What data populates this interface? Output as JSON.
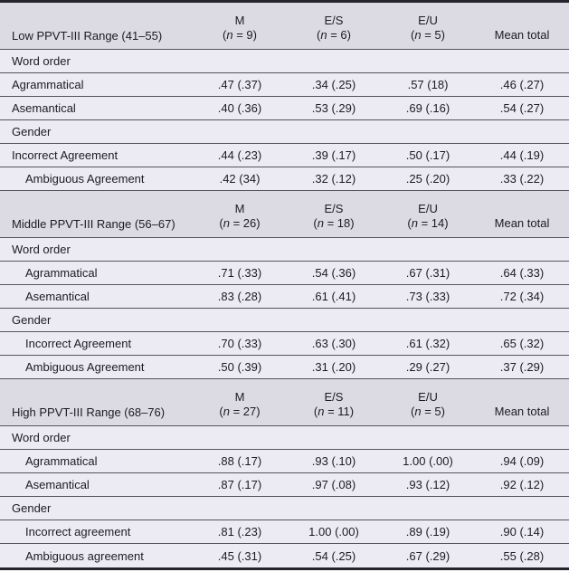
{
  "table": {
    "colors": {
      "header_band_bg": "#dcdbe3",
      "row_bg": "#ecebf3",
      "rule": "#55545d",
      "outer_border": "#24242b",
      "text": "#1b1b21"
    },
    "blocks": [
      {
        "title": "Low PPVT-III Range (41–55)",
        "mean_total_label": "Mean total",
        "col_heads": [
          {
            "label": "M",
            "n_open": "(",
            "n_italic": "n",
            "n_rest": " = 9)"
          },
          {
            "label": "E/S",
            "n_open": "(",
            "n_italic": "n",
            "n_rest": " = 6)"
          },
          {
            "label": "E/U",
            "n_open": "(",
            "n_italic": "n",
            "n_rest": " = 5)"
          }
        ],
        "rows": [
          {
            "type": "section",
            "indent": false,
            "label": "Word order"
          },
          {
            "type": "data",
            "indent": false,
            "label": "Agrammatical",
            "values": [
              ".47 (.37)",
              ".34 (.25)",
              ".57 (18)",
              ".46 (.27)"
            ]
          },
          {
            "type": "data",
            "indent": false,
            "label": "Asemantical",
            "values": [
              ".40 (.36)",
              ".53 (.29)",
              ".69 (.16)",
              ".54 (.27)"
            ]
          },
          {
            "type": "section",
            "indent": false,
            "label": "Gender"
          },
          {
            "type": "data",
            "indent": false,
            "label": "Incorrect Agreement",
            "values": [
              ".44 (.23)",
              ".39 (.17)",
              ".50 (.17)",
              ".44 (.19)"
            ]
          },
          {
            "type": "data",
            "indent": true,
            "label": "Ambiguous Agreement",
            "values": [
              ".42 (34)",
              ".32 (.12)",
              ".25 (.20)",
              ".33 (.22)"
            ]
          }
        ]
      },
      {
        "title": "Middle PPVT-III Range (56–67)",
        "mean_total_label": "Mean total",
        "col_heads": [
          {
            "label": "M",
            "n_open": "(",
            "n_italic": "n",
            "n_rest": " = 26)"
          },
          {
            "label": "E/S",
            "n_open": "(",
            "n_italic": "n",
            "n_rest": " = 18)"
          },
          {
            "label": "E/U",
            "n_open": "(",
            "n_italic": "n",
            "n_rest": " = 14)"
          }
        ],
        "rows": [
          {
            "type": "section",
            "indent": false,
            "label": "Word order"
          },
          {
            "type": "data",
            "indent": true,
            "label": "Agrammatical",
            "values": [
              ".71 (.33)",
              ".54 (.36)",
              ".67 (.31)",
              ".64 (.33)"
            ]
          },
          {
            "type": "data",
            "indent": true,
            "label": "Asemantical",
            "values": [
              ".83 (.28)",
              ".61 (.41)",
              ".73 (.33)",
              ".72 (.34)"
            ]
          },
          {
            "type": "section",
            "indent": false,
            "label": "Gender"
          },
          {
            "type": "data",
            "indent": true,
            "label": "Incorrect Agreement",
            "values": [
              ".70 (.33)",
              ".63 (.30)",
              ".61 (.32)",
              ".65 (.32)"
            ]
          },
          {
            "type": "data",
            "indent": true,
            "label": "Ambiguous Agreement",
            "values": [
              ".50 (.39)",
              ".31 (.20)",
              ".29 (.27)",
              ".37 (.29)"
            ]
          }
        ]
      },
      {
        "title": "High PPVT-III Range (68–76)",
        "mean_total_label": "Mean total",
        "col_heads": [
          {
            "label": "M",
            "n_open": "(",
            "n_italic": "n",
            "n_rest": " = 27)"
          },
          {
            "label": "E/S",
            "n_open": "(",
            "n_italic": "n",
            "n_rest": " = 11)"
          },
          {
            "label": "E/U",
            "n_open": "(",
            "n_italic": "n",
            "n_rest": " = 5)"
          }
        ],
        "rows": [
          {
            "type": "section",
            "indent": false,
            "label": "Word order"
          },
          {
            "type": "data",
            "indent": true,
            "label": "Agrammatical",
            "values": [
              ".88 (.17)",
              ".93 (.10)",
              "1.00 (.00)",
              ".94 (.09)"
            ]
          },
          {
            "type": "data",
            "indent": true,
            "label": "Asemantical",
            "values": [
              ".87 (.17)",
              ".97 (.08)",
              ".93 (.12)",
              ".92 (.12)"
            ]
          },
          {
            "type": "section",
            "indent": false,
            "label": "Gender"
          },
          {
            "type": "data",
            "indent": true,
            "label": "Incorrect agreement",
            "values": [
              ".81 (.23)",
              "1.00 (.00)",
              ".89 (.19)",
              ".90 (.14)"
            ]
          },
          {
            "type": "data",
            "indent": true,
            "label": "Ambiguous agreement",
            "values": [
              ".45 (.31)",
              ".54 (.25)",
              ".67 (.29)",
              ".55 (.28)"
            ]
          }
        ]
      }
    ]
  }
}
